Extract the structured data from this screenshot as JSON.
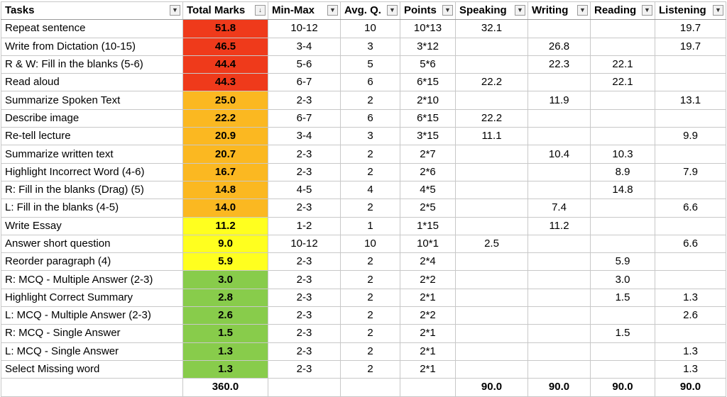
{
  "headers": [
    "Tasks",
    "Total Marks",
    "Min-Max",
    "Avg. Q.",
    "Points",
    "Speaking",
    "Writing",
    "Reading",
    "Listening"
  ],
  "filter_icons": [
    "filter-dropdown-icon",
    "sort-descending-icon"
  ],
  "colors": {
    "red": "#ef3a1b",
    "orange": "#fbb821",
    "yellow": "#ffff1f",
    "green": "#88cc4b"
  },
  "rows": [
    {
      "task": "Repeat sentence",
      "total": "51.8",
      "band": "red",
      "minmax": "10-12",
      "avg": "10",
      "points": "10*13",
      "speaking": "32.1",
      "writing": "",
      "reading": "",
      "listening": "19.7"
    },
    {
      "task": "Write from Dictation (10-15)",
      "total": "46.5",
      "band": "red",
      "minmax": "3-4",
      "avg": "3",
      "points": "3*12",
      "speaking": "",
      "writing": "26.8",
      "reading": "",
      "listening": "19.7"
    },
    {
      "task": "R & W: Fill in the blanks (5-6)",
      "total": "44.4",
      "band": "red",
      "minmax": "5-6",
      "avg": "5",
      "points": "5*6",
      "speaking": "",
      "writing": "22.3",
      "reading": "22.1",
      "listening": ""
    },
    {
      "task": "Read aloud",
      "total": "44.3",
      "band": "red",
      "minmax": "6-7",
      "avg": "6",
      "points": "6*15",
      "speaking": "22.2",
      "writing": "",
      "reading": "22.1",
      "listening": ""
    },
    {
      "task": "Summarize Spoken Text",
      "total": "25.0",
      "band": "orange",
      "minmax": "2-3",
      "avg": "2",
      "points": "2*10",
      "speaking": "",
      "writing": "11.9",
      "reading": "",
      "listening": "13.1"
    },
    {
      "task": "Describe image",
      "total": "22.2",
      "band": "orange",
      "minmax": "6-7",
      "avg": "6",
      "points": "6*15",
      "speaking": "22.2",
      "writing": "",
      "reading": "",
      "listening": ""
    },
    {
      "task": "Re-tell lecture",
      "total": "20.9",
      "band": "orange",
      "minmax": "3-4",
      "avg": "3",
      "points": "3*15",
      "speaking": "11.1",
      "writing": "",
      "reading": "",
      "listening": "9.9"
    },
    {
      "task": "Summarize written text",
      "total": "20.7",
      "band": "orange",
      "minmax": "2-3",
      "avg": "2",
      "points": "2*7",
      "speaking": "",
      "writing": "10.4",
      "reading": "10.3",
      "listening": ""
    },
    {
      "task": "Highlight Incorrect Word (4-6)",
      "total": "16.7",
      "band": "orange",
      "minmax": "2-3",
      "avg": "2",
      "points": "2*6",
      "speaking": "",
      "writing": "",
      "reading": "8.9",
      "listening": "7.9"
    },
    {
      "task": "R: Fill in the blanks (Drag) (5)",
      "total": "14.8",
      "band": "orange",
      "minmax": "4-5",
      "avg": "4",
      "points": "4*5",
      "speaking": "",
      "writing": "",
      "reading": "14.8",
      "listening": ""
    },
    {
      "task": "L: Fill in the blanks (4-5)",
      "total": "14.0",
      "band": "orange",
      "minmax": "2-3",
      "avg": "2",
      "points": "2*5",
      "speaking": "",
      "writing": "7.4",
      "reading": "",
      "listening": "6.6"
    },
    {
      "task": "Write Essay",
      "total": "11.2",
      "band": "yellow",
      "minmax": "1-2",
      "avg": "1",
      "points": "1*15",
      "speaking": "",
      "writing": "11.2",
      "reading": "",
      "listening": ""
    },
    {
      "task": "Answer short question",
      "total": "9.0",
      "band": "yellow",
      "minmax": "10-12",
      "avg": "10",
      "points": "10*1",
      "speaking": "2.5",
      "writing": "",
      "reading": "",
      "listening": "6.6"
    },
    {
      "task": "Reorder paragraph (4)",
      "total": "5.9",
      "band": "yellow",
      "minmax": "2-3",
      "avg": "2",
      "points": "2*4",
      "speaking": "",
      "writing": "",
      "reading": "5.9",
      "listening": ""
    },
    {
      "task": "R: MCQ - Multiple Answer (2-3)",
      "total": "3.0",
      "band": "green",
      "minmax": "2-3",
      "avg": "2",
      "points": "2*2",
      "speaking": "",
      "writing": "",
      "reading": "3.0",
      "listening": ""
    },
    {
      "task": "Highlight Correct Summary",
      "total": "2.8",
      "band": "green",
      "minmax": "2-3",
      "avg": "2",
      "points": "2*1",
      "speaking": "",
      "writing": "",
      "reading": "1.5",
      "listening": "1.3"
    },
    {
      "task": "L: MCQ - Multiple Answer (2-3)",
      "total": "2.6",
      "band": "green",
      "minmax": "2-3",
      "avg": "2",
      "points": "2*2",
      "speaking": "",
      "writing": "",
      "reading": "",
      "listening": "2.6"
    },
    {
      "task": "R: MCQ - Single Answer",
      "total": "1.5",
      "band": "green",
      "minmax": "2-3",
      "avg": "2",
      "points": "2*1",
      "speaking": "",
      "writing": "",
      "reading": "1.5",
      "listening": ""
    },
    {
      "task": "L: MCQ - Single Answer",
      "total": "1.3",
      "band": "green",
      "minmax": "2-3",
      "avg": "2",
      "points": "2*1",
      "speaking": "",
      "writing": "",
      "reading": "",
      "listening": "1.3"
    },
    {
      "task": "Select Missing word",
      "total": "1.3",
      "band": "green",
      "minmax": "2-3",
      "avg": "2",
      "points": "2*1",
      "speaking": "",
      "writing": "",
      "reading": "",
      "listening": "1.3"
    }
  ],
  "totals": {
    "total": "360.0",
    "speaking": "90.0",
    "writing": "90.0",
    "reading": "90.0",
    "listening": "90.0"
  }
}
